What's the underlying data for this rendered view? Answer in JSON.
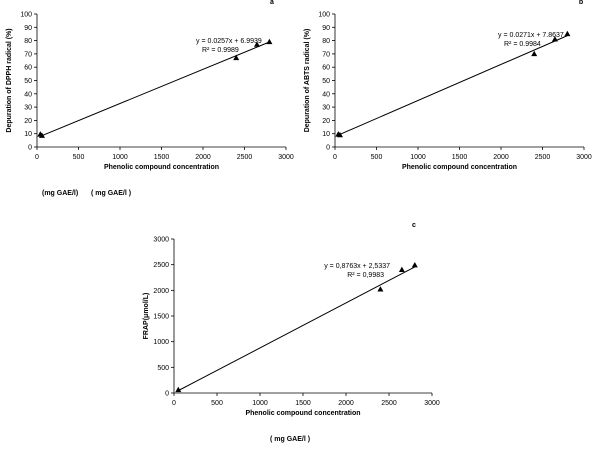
{
  "notes": {
    "unit_a": "(mg GAE/l)",
    "unit_b": "( mg GAE/l )",
    "unit_c": "( mg GAE/l )"
  },
  "chart_data": [
    {
      "panel_label": "a",
      "type": "scatter",
      "xlabel": "Phenolic compound concentration",
      "ylabel": "Depuration of DPPH radical (%)",
      "xlim": [
        0,
        3000
      ],
      "ylim": [
        0,
        100
      ],
      "xticks": [
        0,
        500,
        1000,
        1500,
        2000,
        2500,
        3000
      ],
      "yticks": [
        0,
        10,
        20,
        30,
        40,
        50,
        60,
        70,
        80,
        90,
        100
      ],
      "x": [
        40,
        60,
        2400,
        2650,
        2800
      ],
      "y": [
        9.5,
        8.5,
        67,
        77,
        79
      ],
      "trendline": {
        "slope": 0.0257,
        "intercept": 6.9939
      },
      "equation": "y = 0.0257x + 6.9939",
      "r2": "R² = 0.9989"
    },
    {
      "panel_label": "b",
      "type": "scatter",
      "xlabel": "Phenolic compound concentration",
      "ylabel": "Depuration of ABTS radical (%)",
      "xlim": [
        0,
        3000
      ],
      "ylim": [
        0,
        100
      ],
      "xticks": [
        0,
        500,
        1000,
        1500,
        2000,
        2500,
        3000
      ],
      "yticks": [
        0,
        10,
        20,
        30,
        40,
        50,
        60,
        70,
        80,
        90,
        100
      ],
      "x": [
        40,
        60,
        2400,
        2650,
        2800
      ],
      "y": [
        9.5,
        9,
        70,
        81,
        85
      ],
      "trendline": {
        "slope": 0.0271,
        "intercept": 7.8637
      },
      "equation": "y = 0.0271x + 7.8637",
      "r2": "R² = 0.9984"
    },
    {
      "panel_label": "c",
      "type": "scatter",
      "xlabel": "Phenolic compound concentration",
      "ylabel": "FRAP(μmol/L)",
      "xlim": [
        0,
        3000
      ],
      "ylim": [
        0,
        3000
      ],
      "xticks": [
        0,
        500,
        1000,
        1500,
        2000,
        2500,
        3000
      ],
      "yticks": [
        0,
        500,
        1000,
        1500,
        2000,
        2500,
        3000
      ],
      "x": [
        50,
        2400,
        2650,
        2800
      ],
      "y": [
        60,
        2020,
        2400,
        2490
      ],
      "trendline": {
        "slope": 0.8763,
        "intercept": 2.5337
      },
      "equation": "y = 0,8763x + 2,5337",
      "r2": "R² = 0,9983"
    }
  ]
}
